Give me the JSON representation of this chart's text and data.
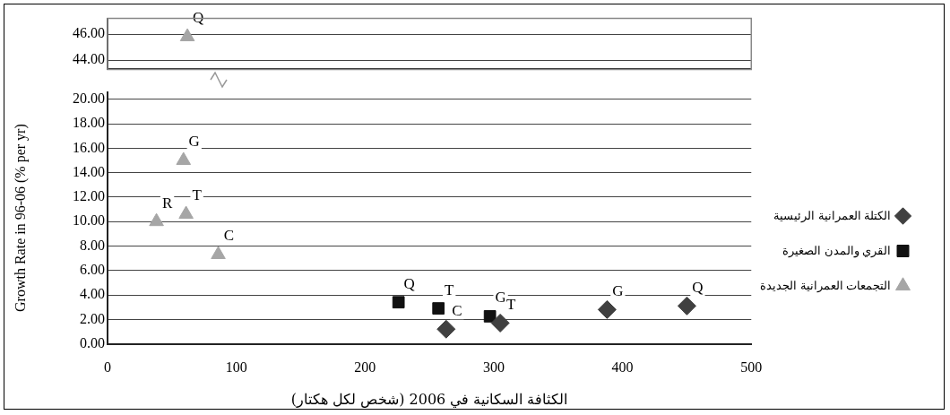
{
  "chart_data": [
    {
      "type": "scatter",
      "xlim": [
        0,
        500
      ],
      "ylim": [
        43.3,
        47.2
      ],
      "yticks": [
        {
          "value": 44,
          "label": "44.00"
        },
        {
          "value": 46,
          "label": "46.00"
        }
      ],
      "tick_labels": "y",
      "grid": "y",
      "legend": false,
      "series": [
        {
          "color": "#a6a6a6",
          "marker": "triangle",
          "x": [
            62
          ],
          "values": [
            45.8
          ]
        }
      ],
      "annotations": [
        {
          "text": "Q",
          "x": 62,
          "y": 45.8
        }
      ]
    },
    {
      "type": "scatter",
      "xlabel": "الكثافة السكانية في 2006 (شخص لكل هكتار)",
      "ylabel": "Growth Rate in 96-06 (% per yr)",
      "xlim": [
        0,
        500
      ],
      "xticks": [
        0,
        100,
        200,
        300,
        400,
        500
      ],
      "ylim": [
        0,
        20.6
      ],
      "yticks": [
        {
          "value": 0,
          "label": "0.00"
        },
        {
          "value": 2,
          "label": "2.00"
        },
        {
          "value": 4,
          "label": "4.00"
        },
        {
          "value": 6,
          "label": "6.00"
        },
        {
          "value": 8,
          "label": "8.00"
        },
        {
          "value": 10,
          "label": "10.00"
        },
        {
          "value": 12,
          "label": "12.00"
        },
        {
          "value": 14,
          "label": "14.00"
        },
        {
          "value": 16,
          "label": "16.00"
        },
        {
          "value": 18,
          "label": "18.00"
        },
        {
          "value": 20,
          "label": "20.00"
        }
      ],
      "grid": "y",
      "legend": "right",
      "series": [
        {
          "name": "الكتلة العمرانية الرئيسية",
          "color": "#404040",
          "marker": "diamond",
          "x": [
            263,
            305,
            388,
            450
          ],
          "values": [
            1.2,
            1.7,
            2.8,
            3.1
          ]
        },
        {
          "name": "القري والمدن الصغيرة",
          "color": "#111111",
          "marker": "square",
          "x": [
            226,
            257,
            297
          ],
          "values": [
            3.4,
            2.9,
            2.25
          ]
        },
        {
          "name": "التجمعات العمرانية الجديدة",
          "color": "#a6a6a6",
          "marker": "triangle",
          "x": [
            59,
            38,
            61,
            86
          ],
          "values": [
            15.0,
            10.0,
            10.6,
            7.3
          ]
        }
      ],
      "annotations": [
        {
          "text": "G",
          "x": 59,
          "y": 15.0
        },
        {
          "text": "R",
          "x": 38,
          "y": 10.0
        },
        {
          "text": "T",
          "x": 61,
          "y": 10.6
        },
        {
          "text": "C",
          "x": 86,
          "y": 7.3
        },
        {
          "text": "Q",
          "x": 226,
          "y": 3.4
        },
        {
          "text": "T",
          "x": 257,
          "y": 2.9
        },
        {
          "text": "G",
          "x": 297,
          "y": 2.25
        },
        {
          "text": "T",
          "x": 305,
          "y": 1.7
        },
        {
          "text": "C",
          "x": 263,
          "y": 1.2
        },
        {
          "text": "G",
          "x": 388,
          "y": 2.8
        },
        {
          "text": "Q",
          "x": 450,
          "y": 3.1
        }
      ]
    }
  ]
}
